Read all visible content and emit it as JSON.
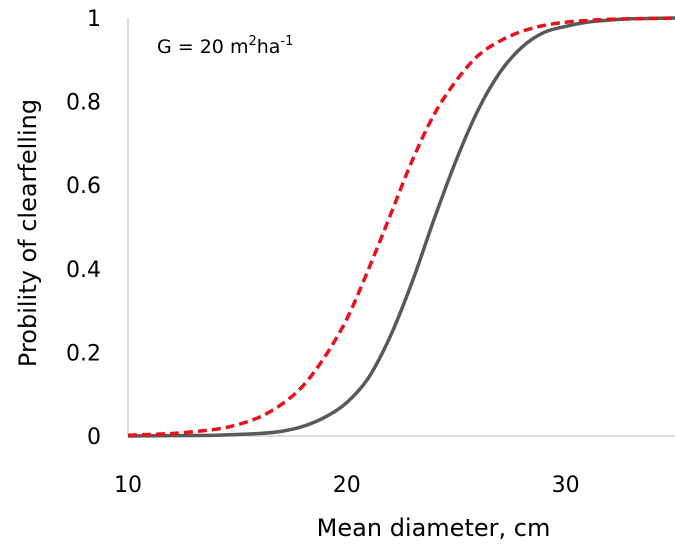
{
  "chart_data": {
    "type": "line",
    "title": "",
    "xlabel": "Mean diameter, cm",
    "ylabel": "Probility of clearfelling",
    "xlim": [
      10,
      35
    ],
    "ylim": [
      0,
      1
    ],
    "xticks": [
      10,
      20,
      30
    ],
    "yticks": [
      0,
      0.2,
      0.4,
      0.6,
      0.8,
      1
    ],
    "grid": false,
    "legend": "none",
    "annotation": {
      "base": "G = 20 m",
      "sup1": "2",
      "mid": "ha",
      "sup2": "-1"
    },
    "series": [
      {
        "style": "solid",
        "color": "#595959",
        "x": [
          10,
          12,
          14,
          16,
          17,
          18,
          19,
          20,
          21,
          22,
          23,
          24,
          25,
          26,
          27,
          28,
          29,
          30,
          31,
          32,
          33,
          34,
          35
        ],
        "y": [
          0,
          0.001,
          0.002,
          0.006,
          0.011,
          0.023,
          0.045,
          0.08,
          0.14,
          0.24,
          0.37,
          0.52,
          0.66,
          0.78,
          0.87,
          0.93,
          0.965,
          0.98,
          0.99,
          0.995,
          0.998,
          0.999,
          1.0
        ]
      },
      {
        "style": "dashed",
        "color": "#e8111b",
        "x": [
          10,
          12,
          14,
          15,
          16,
          17,
          18,
          19,
          20,
          21,
          22,
          23,
          24,
          25,
          26,
          27,
          28,
          29,
          30,
          31,
          32,
          33,
          34,
          35
        ],
        "y": [
          0.002,
          0.006,
          0.016,
          0.027,
          0.045,
          0.075,
          0.12,
          0.19,
          0.28,
          0.4,
          0.53,
          0.66,
          0.77,
          0.85,
          0.91,
          0.945,
          0.968,
          0.982,
          0.99,
          0.994,
          0.997,
          0.998,
          0.999,
          1.0
        ]
      }
    ]
  }
}
